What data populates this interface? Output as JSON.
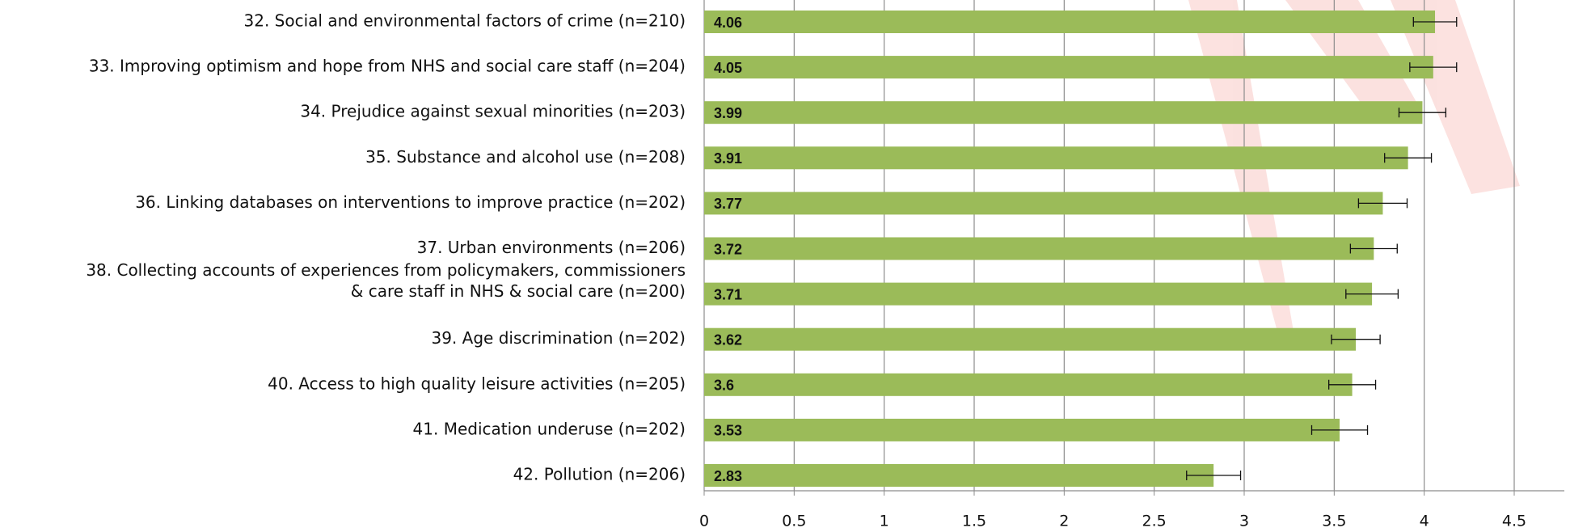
{
  "chart_data": {
    "type": "hbar",
    "categories": [
      "32. Social and environmental factors of crime (n=210)",
      "33. Improving optimism and hope from NHS and social care staff (n=204)",
      "34. Prejudice against sexual minorities (n=203)",
      "35. Substance and alcohol use (n=208)",
      "36. Linking databases on interventions to improve practice (n=202)",
      "37. Urban environments (n=206)",
      [
        "38. Collecting accounts of experiences from policymakers, commissioners",
        "& care staff in NHS & social care (n=200)"
      ],
      "39. Age discrimination (n=202)",
      "40. Access to high quality leisure activities (n=205)",
      "41. Medication underuse (n=202)",
      "42. Pollution (n=206)"
    ],
    "values": [
      4.06,
      4.05,
      3.99,
      3.91,
      3.77,
      3.72,
      3.71,
      3.62,
      3.6,
      3.53,
      2.83
    ],
    "errors": [
      0.12,
      0.13,
      0.13,
      0.13,
      0.135,
      0.13,
      0.145,
      0.135,
      0.13,
      0.155,
      0.15
    ],
    "color": "#9bbb59",
    "xlim": [
      0,
      4.5
    ],
    "xticks": [
      0,
      0.5,
      1,
      1.5,
      2,
      2.5,
      3,
      3.5,
      4,
      4.5
    ],
    "grid": true
  }
}
